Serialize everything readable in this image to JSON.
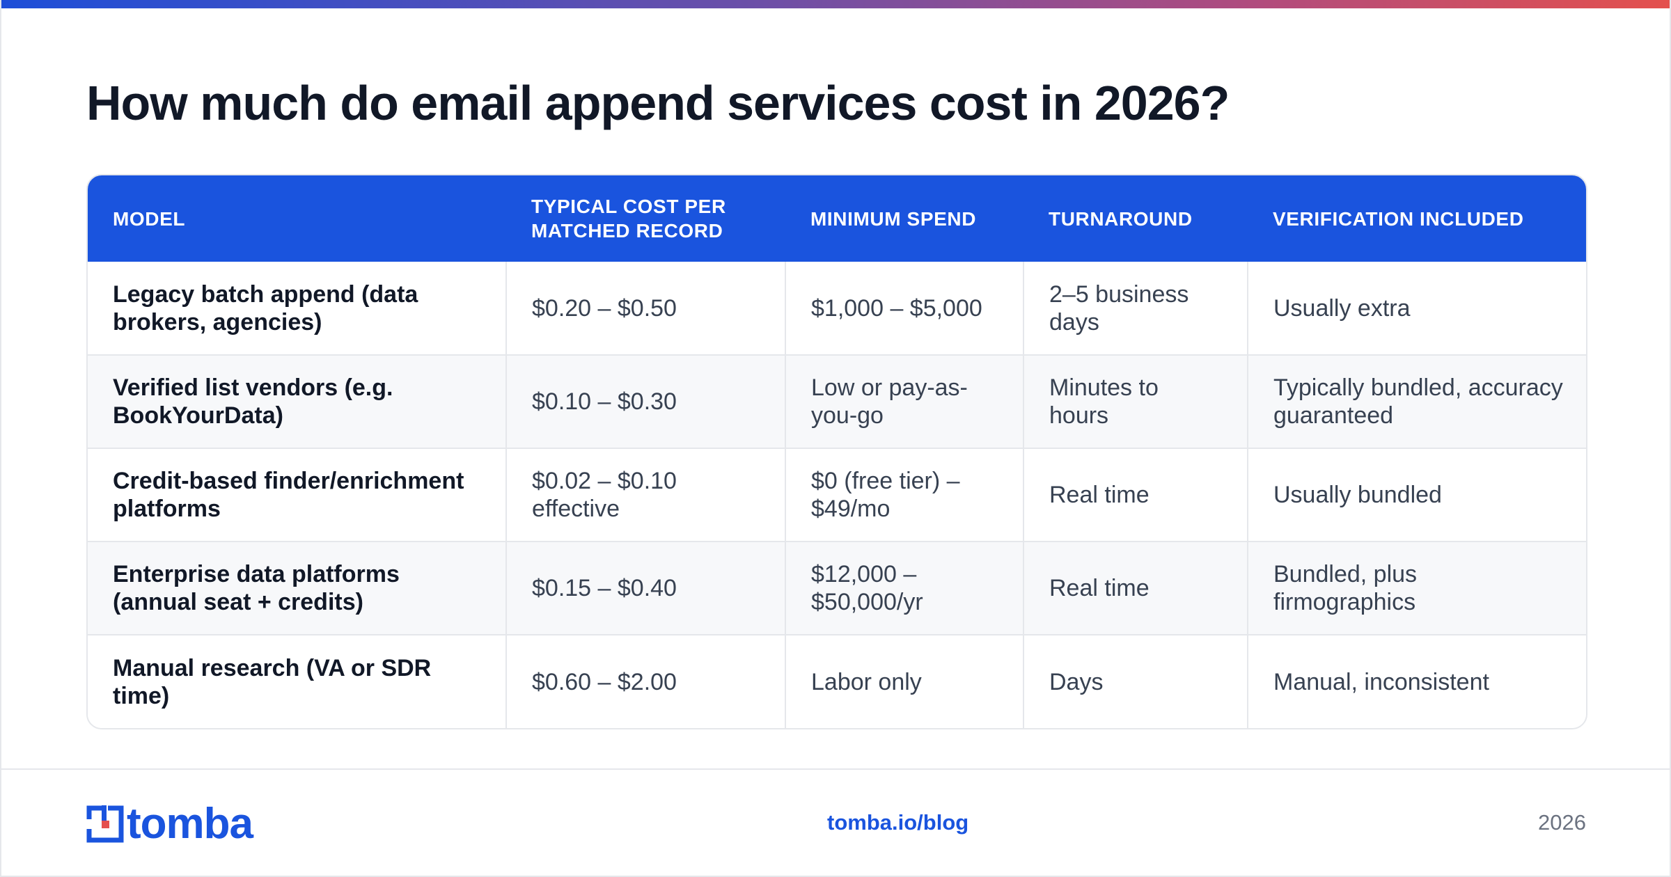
{
  "title": "How much do email append services cost in 2026?",
  "table": {
    "headers": [
      "MODEL",
      "TYPICAL COST PER MATCHED RECORD",
      "MINIMUM SPEND",
      "TURNAROUND",
      "VERIFICATION INCLUDED"
    ],
    "rows": [
      [
        "Legacy batch append (data brokers, agencies)",
        "$0.20 – $0.50",
        "$1,000 – $5,000",
        "2–5 business days",
        "Usually extra"
      ],
      [
        "Verified list vendors (e.g. BookYourData)",
        "$0.10 – $0.30",
        "Low or pay-as-you-go",
        "Minutes to hours",
        "Typically bundled, accuracy guaranteed"
      ],
      [
        "Credit-based finder/enrichment platforms",
        "$0.02 – $0.10 effective",
        "$0 (free tier) – $49/mo",
        "Real time",
        "Usually bundled"
      ],
      [
        "Enterprise data platforms (annual seat + credits)",
        "$0.15 – $0.40",
        "$12,000 – $50,000/yr",
        "Real time",
        "Bundled, plus firmographics"
      ],
      [
        "Manual research (VA or SDR time)",
        "$0.60 – $2.00",
        "Labor only",
        "Days",
        "Manual, inconsistent"
      ]
    ]
  },
  "footer": {
    "logo_text": "tomba",
    "link": "tomba.io/blog",
    "year": "2026"
  },
  "colors": {
    "accent": "#1a54de",
    "logo_red": "#e4504d",
    "text_dark": "#111827",
    "text_body": "#374151",
    "row_alt": "#f7f8fa"
  }
}
